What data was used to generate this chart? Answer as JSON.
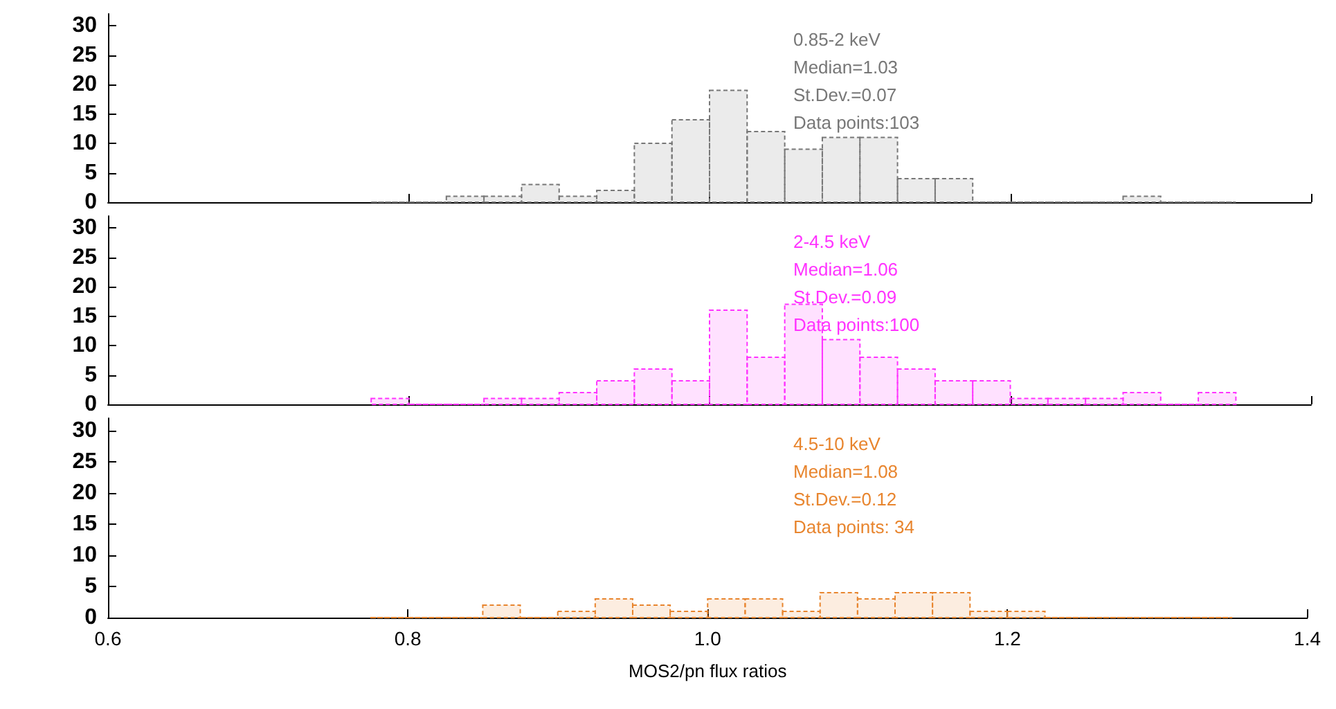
{
  "chart_data": [
    {
      "type": "histogram",
      "bins": [
        0.775,
        0.8,
        0.825,
        0.85,
        0.875,
        0.9,
        0.925,
        0.95,
        0.975,
        1.0,
        1.025,
        1.05,
        1.075,
        1.1,
        1.125,
        1.15,
        1.175,
        1.2,
        1.225,
        1.25,
        1.275,
        1.3,
        1.325,
        1.35
      ],
      "values": [
        0,
        0,
        1,
        1,
        3,
        1,
        2,
        10,
        14,
        19,
        12,
        9,
        11,
        11,
        4,
        4,
        0,
        0,
        0,
        0,
        1,
        0,
        0
      ],
      "color": "#777777",
      "annotations": [
        "0.85-2 keV",
        "Median=1.03",
        "St.Dev.=0.07",
        "Data points:103"
      ],
      "xlim": [
        0.6,
        1.4
      ],
      "xticks": [
        0.6,
        0.8,
        1.0,
        1.2,
        1.4
      ],
      "ylim": [
        0,
        32
      ],
      "yticks": [
        0,
        5,
        10,
        15,
        20,
        25,
        30
      ],
      "tick_labels": "y"
    },
    {
      "type": "histogram",
      "bins": [
        0.775,
        0.8,
        0.825,
        0.85,
        0.875,
        0.9,
        0.925,
        0.95,
        0.975,
        1.0,
        1.025,
        1.05,
        1.075,
        1.1,
        1.125,
        1.15,
        1.175,
        1.2,
        1.225,
        1.25,
        1.275,
        1.3,
        1.325,
        1.35
      ],
      "values": [
        1,
        0,
        0,
        1,
        1,
        2,
        4,
        6,
        4,
        16,
        8,
        17,
        11,
        8,
        6,
        4,
        4,
        1,
        1,
        1,
        2,
        0,
        2
      ],
      "color": "#ff33ff",
      "annotations": [
        "2-4.5 keV",
        "Median=1.06",
        "St.Dev.=0.09",
        "Data points:100"
      ],
      "xlim": [
        0.6,
        1.4
      ],
      "xticks": [
        0.6,
        0.8,
        1.0,
        1.2,
        1.4
      ],
      "ylim": [
        0,
        32
      ],
      "yticks": [
        0,
        5,
        10,
        15,
        20,
        25,
        30
      ],
      "tick_labels": "y"
    },
    {
      "type": "histogram",
      "bins": [
        0.775,
        0.8,
        0.825,
        0.85,
        0.875,
        0.9,
        0.925,
        0.95,
        0.975,
        1.0,
        1.025,
        1.05,
        1.075,
        1.1,
        1.125,
        1.15,
        1.175,
        1.2,
        1.225,
        1.25,
        1.275,
        1.3,
        1.325,
        1.35
      ],
      "values": [
        0,
        0,
        0,
        2,
        0,
        1,
        3,
        2,
        1,
        3,
        3,
        1,
        4,
        3,
        4,
        4,
        1,
        1,
        0,
        0,
        0,
        0,
        0
      ],
      "color": "#e8852e",
      "annotations": [
        "4.5-10 keV",
        "Median=1.08",
        "St.Dev.=0.12",
        "Data points: 34"
      ],
      "xlabel": "MOS2/pn flux ratios",
      "xlim": [
        0.6,
        1.4
      ],
      "xticks": [
        0.6,
        0.8,
        {
          "value": 1,
          "label": "1.0"
        },
        1.2,
        1.4
      ],
      "ylim": [
        0,
        32
      ],
      "yticks": [
        0,
        5,
        10,
        15,
        20,
        25,
        30
      ]
    }
  ]
}
